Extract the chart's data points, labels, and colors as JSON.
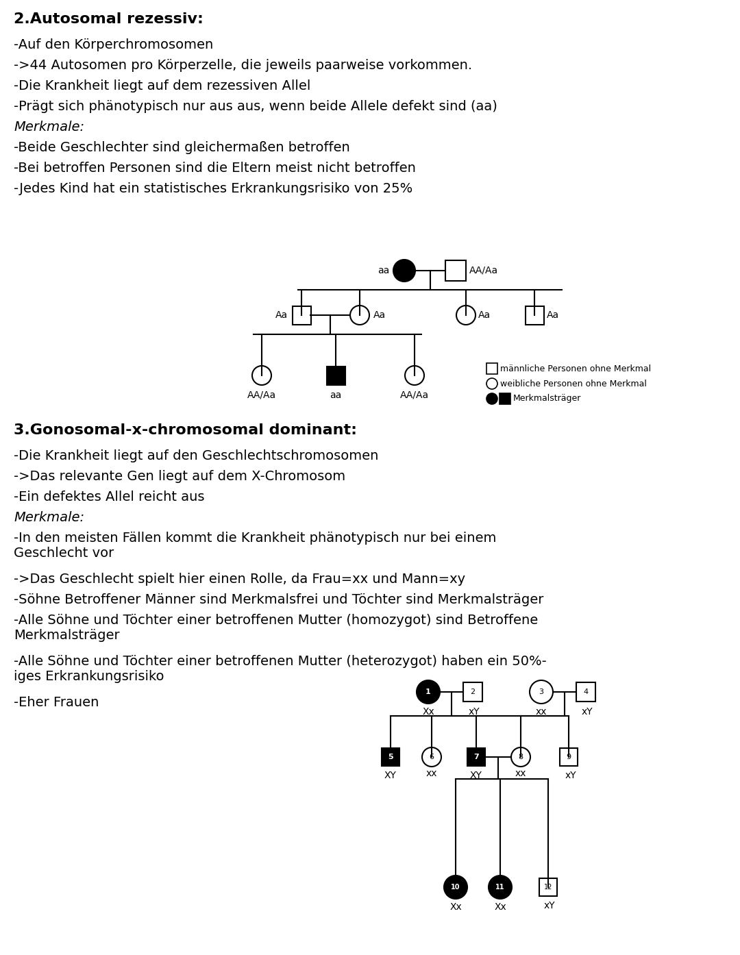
{
  "title1": "2.Autosomal rezessiv:",
  "text1": [
    "-Auf den Körperchromosomen",
    "->44 Autosomen pro Körperzelle, die jeweils paarweise vorkommen.",
    "-Die Krankheit liegt auf dem rezessiven Allel",
    "-Prägt sich phänotypisch nur aus aus, wenn beide Allele defekt sind (aa)",
    "Merkmale:",
    "-Beide Geschlechter sind gleichermaßen betroffen",
    "-Bei betroffen Personen sind die Eltern meist nicht betroffen",
    "-Jedes Kind hat ein statistisches Erkrankungsrisiko von 25%"
  ],
  "merkmale1_idx": 4,
  "title2": "3.Gonosomal-x-chromosomal dominant:",
  "text2": [
    "-Die Krankheit liegt auf den Geschlechtschromosomen",
    "->Das relevante Gen liegt auf dem X-Chromosom",
    "-Ein defektes Allel reicht aus",
    "Merkmale:",
    "-In den meisten Fällen kommt die Krankheit phänotypisch nur bei einem\nGeschlecht vor",
    "->Das Geschlecht spielt hier einen Rolle, da Frau=xx und Mann=xy",
    "-Söhne Betroffener Männer sind Merkmalsfrei und Töchter sind Merkmalsträger",
    "-Alle Söhne und Töchter einer betroffenen Mutter (homozygot) sind Betroffene\nMerkmalsträger",
    "-Alle Söhne und Töchter einer betroffenen Mutter (heterozygot) haben ein 50%-\niges Erkrankungsrisiko",
    "-Eher Frauen"
  ],
  "merkmale2_idx": 3,
  "bg_color": "#ffffff",
  "text_color": "#000000",
  "fontsize_title": 16,
  "fontsize_body": 14,
  "fontsize_diagram": 10,
  "fontsize_legend": 9
}
